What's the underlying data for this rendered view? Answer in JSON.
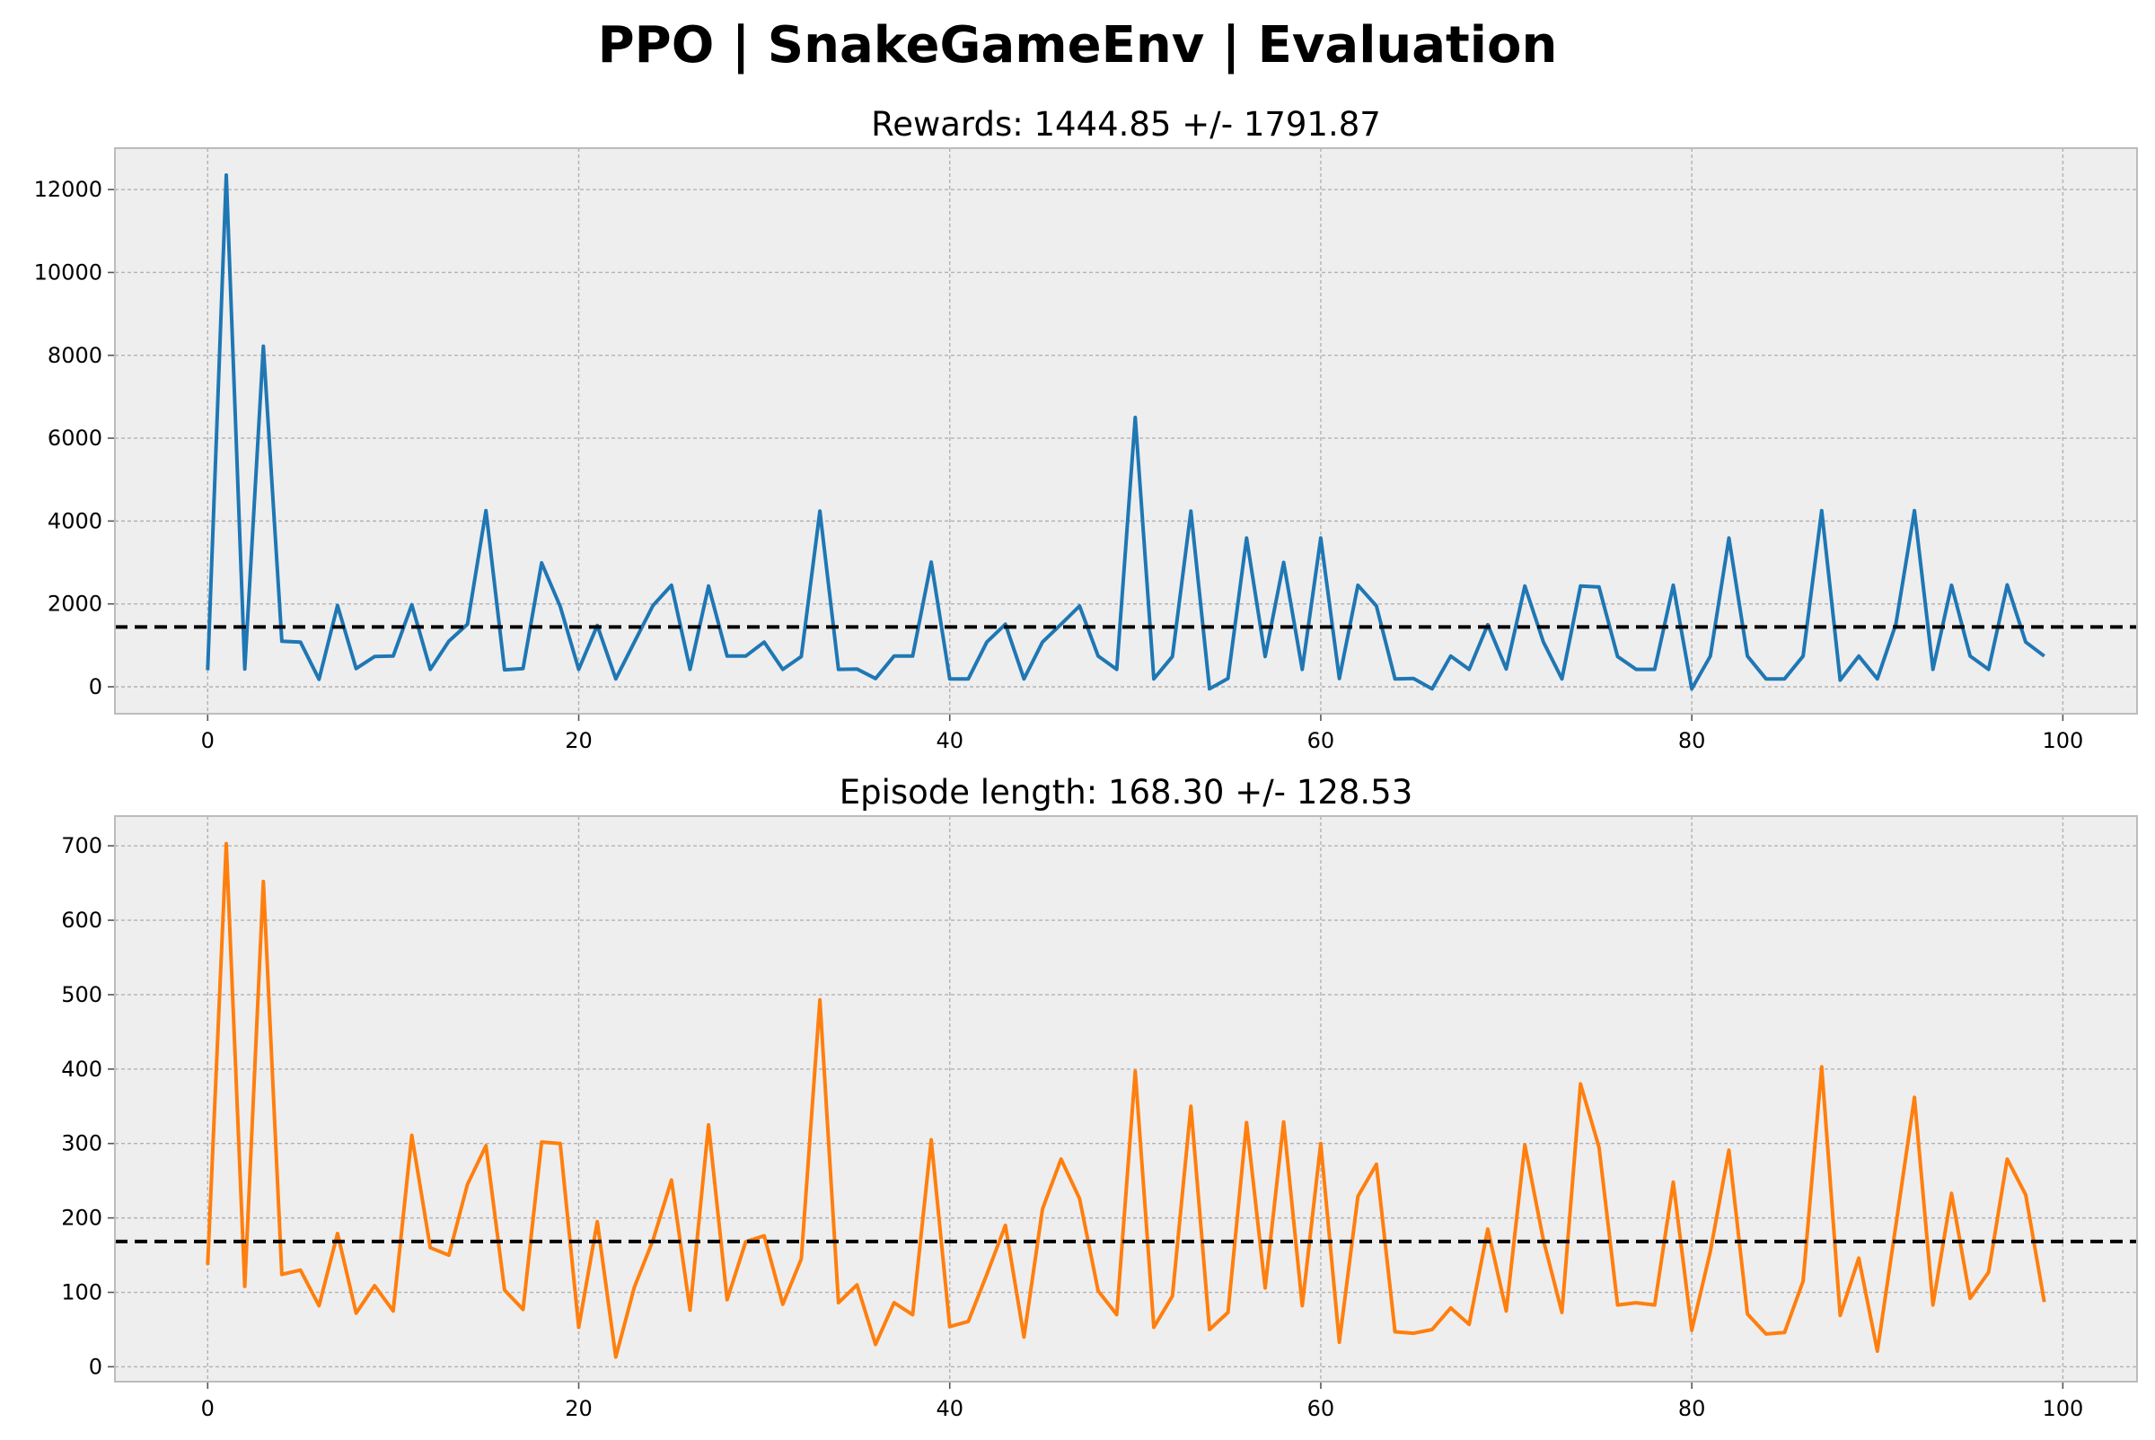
{
  "figure": {
    "suptitle": "PPO | SnakeGameEnv | Evaluation"
  },
  "chart_data": [
    {
      "type": "line",
      "title": "Rewards: 1444.85 +/- 1791.87",
      "xlabel": "",
      "ylabel": "",
      "xlim": [
        -5,
        104
      ],
      "ylim": [
        -650,
        13000
      ],
      "xticks": [
        0,
        20,
        40,
        60,
        80,
        100
      ],
      "yticks": [
        0,
        2000,
        4000,
        6000,
        8000,
        10000,
        12000
      ],
      "grid": true,
      "mean_line": 1444.85,
      "color": "#1f77b4",
      "series": [
        {
          "x_start": 0,
          "values": [
            400,
            12350,
            430,
            8220,
            1100,
            1080,
            180,
            1960,
            440,
            730,
            740,
            1980,
            420,
            1100,
            1510,
            4250,
            410,
            440,
            2990,
            1940,
            420,
            1480,
            190,
            1080,
            1960,
            2450,
            420,
            2430,
            740,
            740,
            1080,
            420,
            730,
            4240,
            420,
            430,
            200,
            740,
            740,
            3010,
            190,
            190,
            1080,
            1510,
            190,
            1080,
            1510,
            1950,
            740,
            420,
            6500,
            190,
            730,
            4240,
            -50,
            200,
            3590,
            730,
            3000,
            420,
            3590,
            200,
            2450,
            1950,
            190,
            200,
            -50,
            740,
            420,
            1500,
            430,
            2430,
            1080,
            190,
            2430,
            2410,
            730,
            420,
            420,
            2450,
            -50,
            740,
            3590,
            740,
            190,
            190,
            740,
            4250,
            160,
            740,
            190,
            1510,
            4250,
            420,
            2450,
            740,
            420,
            2460,
            1080,
            740
          ]
        }
      ]
    },
    {
      "type": "line",
      "title": "Episode length: 168.30 +/- 128.53",
      "xlabel": "",
      "ylabel": "",
      "xlim": [
        -5,
        104
      ],
      "ylim": [
        -20,
        740
      ],
      "xticks": [
        0,
        20,
        40,
        60,
        80,
        100
      ],
      "yticks": [
        0,
        100,
        200,
        300,
        400,
        500,
        600,
        700
      ],
      "grid": true,
      "mean_line": 168.3,
      "color": "#ff7f0e",
      "series": [
        {
          "x_start": 0,
          "values": [
            137,
            703,
            108,
            652,
            124,
            130,
            82,
            179,
            72,
            109,
            75,
            311,
            160,
            150,
            245,
            297,
            103,
            77,
            302,
            300,
            53,
            195,
            13,
            107,
            170,
            251,
            76,
            325,
            90,
            168,
            176,
            84,
            145,
            493,
            86,
            110,
            30,
            86,
            70,
            305,
            54,
            61,
            124,
            190,
            40,
            212,
            279,
            226,
            102,
            70,
            397,
            53,
            95,
            350,
            50,
            73,
            328,
            106,
            329,
            82,
            300,
            33,
            229,
            272,
            47,
            45,
            50,
            79,
            57,
            185,
            75,
            298,
            170,
            73,
            380,
            295,
            83,
            86,
            83,
            248,
            49,
            155,
            291,
            71,
            44,
            46,
            115,
            403,
            69,
            146,
            21,
            190,
            362,
            83,
            233,
            92,
            127,
            279,
            231,
            87
          ]
        }
      ]
    }
  ]
}
